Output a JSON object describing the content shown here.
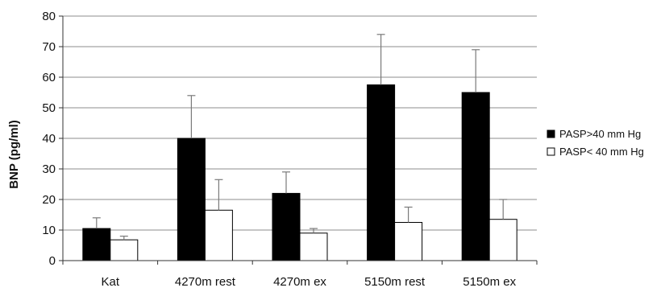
{
  "chart_data": {
    "type": "bar",
    "title": "",
    "xlabel": "",
    "ylabel": "BNP (pg/ml)",
    "ylim": [
      0,
      80
    ],
    "yticks": [
      0,
      10,
      20,
      30,
      40,
      50,
      60,
      70,
      80
    ],
    "grid": true,
    "legend_position": "right",
    "categories": [
      "Kat",
      "4270m rest",
      "4270m ex",
      "5150m rest",
      "5150m ex"
    ],
    "series": [
      {
        "name": "PASP>40 mm Hg",
        "color": "#000000",
        "values": [
          10.5,
          40,
          22,
          57.5,
          55
        ],
        "error_upper": [
          14,
          54,
          29,
          74,
          69
        ]
      },
      {
        "name": "PASP< 40 mm Hg",
        "color": "#ffffff",
        "values": [
          6.8,
          16.5,
          9,
          12.5,
          13.5
        ],
        "error_upper": [
          8,
          26.5,
          10.5,
          17.5,
          20
        ]
      }
    ]
  }
}
